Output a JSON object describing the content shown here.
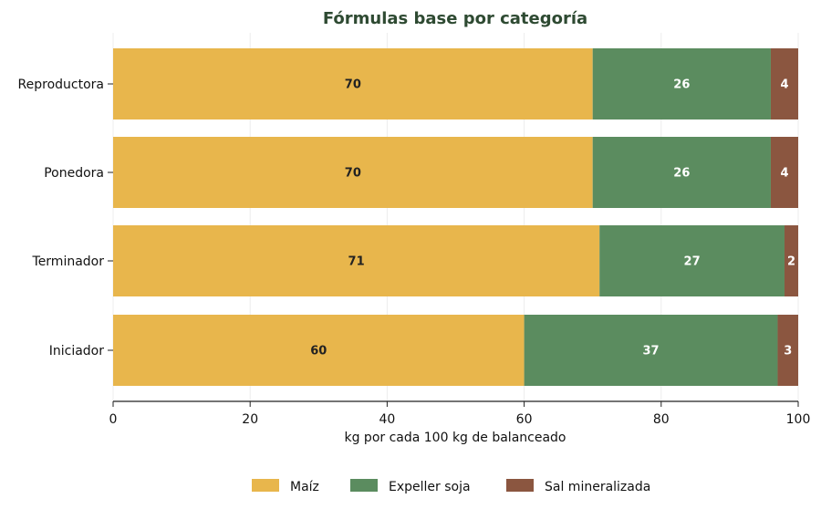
{
  "chart_data": {
    "type": "bar",
    "orientation": "horizontal",
    "stacked": true,
    "title": "Fórmulas base por categoría",
    "xlabel": "kg por cada 100 kg de balanceado",
    "ylabel": "",
    "xlim": [
      0,
      100
    ],
    "xticks": [
      "0",
      "20",
      "40",
      "60",
      "80",
      "100"
    ],
    "grid": "vertical, light",
    "legend_position": "bottom-center",
    "categories": [
      "Reproductora",
      "Ponedora",
      "Terminador",
      "Iniciador"
    ],
    "series": [
      {
        "name": "Maíz",
        "color": "#e8b64c",
        "label_color": "#222222",
        "values": [
          70,
          70,
          71,
          60
        ]
      },
      {
        "name": "Expeller soja",
        "color": "#5b8c5f",
        "label_color": "#ffffff",
        "values": [
          26,
          26,
          27,
          37
        ]
      },
      {
        "name": "Sal mineralizada",
        "color": "#8b5640",
        "label_color": "#ffffff",
        "values": [
          4,
          4,
          2,
          3
        ]
      }
    ],
    "value_labels": [
      [
        "70",
        "26",
        "4"
      ],
      [
        "70",
        "26",
        "4"
      ],
      [
        "71",
        "27",
        "2"
      ],
      [
        "60",
        "37",
        "3"
      ]
    ]
  }
}
